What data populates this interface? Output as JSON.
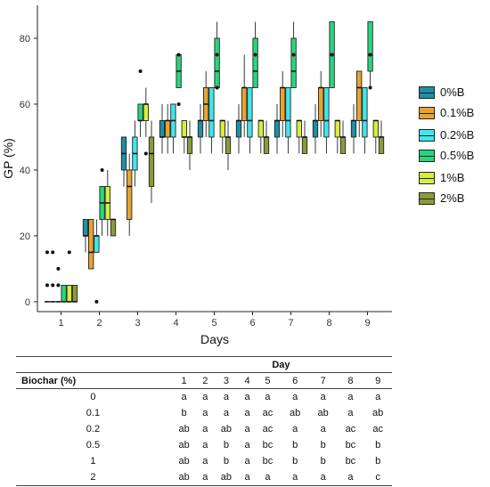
{
  "chart_data": {
    "type": "box",
    "xlabel": "Days",
    "ylabel": "GP (%)",
    "ylim": [
      -3,
      90
    ],
    "yticks": [
      0,
      20,
      40,
      60,
      80
    ],
    "categories": [
      "1",
      "2",
      "3",
      "4",
      "5",
      "6",
      "7",
      "8",
      "9"
    ],
    "grid": false,
    "legend_position": "right",
    "series": [
      {
        "name": "0%B",
        "color": "#1f8fa6",
        "boxes": [
          {
            "min": 0,
            "q1": 0,
            "median": 0,
            "q3": 0,
            "max": 0,
            "outliers": [
              5,
              15
            ]
          },
          {
            "min": 15,
            "q1": 20,
            "median": 20,
            "q3": 25,
            "max": 25,
            "outliers": []
          },
          {
            "min": 35,
            "q1": 40,
            "median": 45,
            "q3": 50,
            "max": 50,
            "outliers": []
          },
          {
            "min": 45,
            "q1": 50,
            "median": 50,
            "q3": 55,
            "max": 60,
            "outliers": []
          },
          {
            "min": 45,
            "q1": 50,
            "median": 55,
            "q3": 55,
            "max": 60,
            "outliers": []
          },
          {
            "min": 45,
            "q1": 50,
            "median": 55,
            "q3": 55,
            "max": 60,
            "outliers": []
          },
          {
            "min": 45,
            "q1": 50,
            "median": 55,
            "q3": 55,
            "max": 60,
            "outliers": []
          },
          {
            "min": 45,
            "q1": 50,
            "median": 55,
            "q3": 55,
            "max": 60,
            "outliers": []
          },
          {
            "min": 45,
            "q1": 50,
            "median": 55,
            "q3": 55,
            "max": 60,
            "outliers": []
          }
        ]
      },
      {
        "name": "0.1%B",
        "color": "#e6a532",
        "boxes": [
          {
            "min": 0,
            "q1": 0,
            "median": 0,
            "q3": 0,
            "max": 0,
            "outliers": [
              5,
              15
            ]
          },
          {
            "min": 10,
            "q1": 10,
            "median": 15,
            "q3": 25,
            "max": 25,
            "outliers": []
          },
          {
            "min": 20,
            "q1": 25,
            "median": 35,
            "q3": 40,
            "max": 45,
            "outliers": []
          },
          {
            "min": 45,
            "q1": 50,
            "median": 55,
            "q3": 55,
            "max": 60,
            "outliers": []
          },
          {
            "min": 50,
            "q1": 55,
            "median": 60,
            "q3": 65,
            "max": 70,
            "outliers": []
          },
          {
            "min": 50,
            "q1": 55,
            "median": 65,
            "q3": 65,
            "max": 75,
            "outliers": []
          },
          {
            "min": 50,
            "q1": 55,
            "median": 65,
            "q3": 65,
            "max": 70,
            "outliers": []
          },
          {
            "min": 50,
            "q1": 55,
            "median": 65,
            "q3": 65,
            "max": 70,
            "outliers": []
          },
          {
            "min": 50,
            "q1": 55,
            "median": 65,
            "q3": 70,
            "max": 70,
            "outliers": []
          }
        ]
      },
      {
        "name": "0.2%B",
        "color": "#3ee8ec",
        "boxes": [
          {
            "min": 0,
            "q1": 0,
            "median": 0,
            "q3": 0,
            "max": 0,
            "outliers": [
              5,
              10
            ]
          },
          {
            "min": 15,
            "q1": 15,
            "median": 20,
            "q3": 20,
            "max": 25,
            "outliers": [
              0
            ]
          },
          {
            "min": 35,
            "q1": 40,
            "median": 45,
            "q3": 50,
            "max": 55,
            "outliers": []
          },
          {
            "min": 45,
            "q1": 50,
            "median": 55,
            "q3": 60,
            "max": 60,
            "outliers": []
          },
          {
            "min": 45,
            "q1": 50,
            "median": 55,
            "q3": 65,
            "max": 65,
            "outliers": []
          },
          {
            "min": 45,
            "q1": 50,
            "median": 55,
            "q3": 65,
            "max": 65,
            "outliers": []
          },
          {
            "min": 45,
            "q1": 50,
            "median": 55,
            "q3": 65,
            "max": 65,
            "outliers": []
          },
          {
            "min": 45,
            "q1": 50,
            "median": 55,
            "q3": 65,
            "max": 65,
            "outliers": []
          },
          {
            "min": 45,
            "q1": 50,
            "median": 55,
            "q3": 65,
            "max": 65,
            "outliers": []
          }
        ]
      },
      {
        "name": "0.5%B",
        "color": "#28d67e",
        "boxes": [
          {
            "min": 0,
            "q1": 0,
            "median": 0,
            "q3": 5,
            "max": 5,
            "outliers": []
          },
          {
            "min": 20,
            "q1": 25,
            "median": 30,
            "q3": 35,
            "max": 35,
            "outliers": [
              40
            ]
          },
          {
            "min": 50,
            "q1": 55,
            "median": 55,
            "q3": 60,
            "max": 60,
            "outliers": [
              70
            ]
          },
          {
            "min": 65,
            "q1": 65,
            "median": 70,
            "q3": 75,
            "max": 75,
            "outliers": [
              60,
              75
            ]
          },
          {
            "min": 65,
            "q1": 65,
            "median": 70,
            "q3": 80,
            "max": 85,
            "outliers": [
              65,
              75
            ]
          },
          {
            "min": 65,
            "q1": 65,
            "median": 70,
            "q3": 80,
            "max": 85,
            "outliers": [
              75
            ]
          },
          {
            "min": 65,
            "q1": 65,
            "median": 70,
            "q3": 80,
            "max": 85,
            "outliers": [
              75
            ]
          },
          {
            "min": 65,
            "q1": 65,
            "median": 75,
            "q3": 85,
            "max": 85,
            "outliers": [
              75
            ]
          },
          {
            "min": 65,
            "q1": 70,
            "median": 75,
            "q3": 85,
            "max": 85,
            "outliers": [
              65,
              75
            ]
          }
        ]
      },
      {
        "name": "1%B",
        "color": "#d4f03a",
        "boxes": [
          {
            "min": 0,
            "q1": 0,
            "median": 0,
            "q3": 5,
            "max": 5,
            "outliers": [
              15
            ]
          },
          {
            "min": 20,
            "q1": 25,
            "median": 30,
            "q3": 35,
            "max": 40,
            "outliers": []
          },
          {
            "min": 50,
            "q1": 55,
            "median": 60,
            "q3": 60,
            "max": 65,
            "outliers": [
              45
            ]
          },
          {
            "min": 45,
            "q1": 50,
            "median": 50,
            "q3": 55,
            "max": 55,
            "outliers": []
          },
          {
            "min": 45,
            "q1": 50,
            "median": 55,
            "q3": 55,
            "max": 55,
            "outliers": []
          },
          {
            "min": 45,
            "q1": 50,
            "median": 55,
            "q3": 55,
            "max": 55,
            "outliers": []
          },
          {
            "min": 45,
            "q1": 50,
            "median": 55,
            "q3": 55,
            "max": 55,
            "outliers": []
          },
          {
            "min": 45,
            "q1": 50,
            "median": 55,
            "q3": 55,
            "max": 55,
            "outliers": []
          },
          {
            "min": 45,
            "q1": 50,
            "median": 55,
            "q3": 55,
            "max": 55,
            "outliers": []
          }
        ]
      },
      {
        "name": "2%B",
        "color": "#8d9a3a",
        "boxes": [
          {
            "min": 0,
            "q1": 0,
            "median": 0,
            "q3": 5,
            "max": 5,
            "outliers": []
          },
          {
            "min": 20,
            "q1": 20,
            "median": 25,
            "q3": 25,
            "max": 25,
            "outliers": []
          },
          {
            "min": 30,
            "q1": 35,
            "median": 45,
            "q3": 50,
            "max": 55,
            "outliers": []
          },
          {
            "min": 40,
            "q1": 45,
            "median": 50,
            "q3": 50,
            "max": 55,
            "outliers": []
          },
          {
            "min": 40,
            "q1": 45,
            "median": 50,
            "q3": 50,
            "max": 55,
            "outliers": []
          },
          {
            "min": 45,
            "q1": 45,
            "median": 50,
            "q3": 50,
            "max": 55,
            "outliers": []
          },
          {
            "min": 45,
            "q1": 45,
            "median": 50,
            "q3": 50,
            "max": 55,
            "outliers": []
          },
          {
            "min": 45,
            "q1": 45,
            "median": 50,
            "q3": 50,
            "max": 55,
            "outliers": []
          },
          {
            "min": 45,
            "q1": 45,
            "median": 50,
            "q3": 50,
            "max": 55,
            "outliers": []
          }
        ]
      }
    ]
  },
  "legend": [
    "0%B",
    "0.1%B",
    "0.2%B",
    "0.5%B",
    "1%B",
    "2%B"
  ],
  "table": {
    "title": "Day",
    "row_header": "Biochar (%)",
    "columns": [
      "1",
      "2",
      "3",
      "4",
      "5",
      "6",
      "7",
      "8",
      "9"
    ],
    "rows": [
      {
        "biochar": "0",
        "cells": [
          "a",
          "a",
          "a",
          "a",
          "a",
          "a",
          "a",
          "a",
          "a"
        ]
      },
      {
        "biochar": "0.1",
        "cells": [
          "b",
          "a",
          "a",
          "a",
          "ac",
          "ab",
          "ab",
          "a",
          "ab"
        ]
      },
      {
        "biochar": "0.2",
        "cells": [
          "ab",
          "a",
          "ab",
          "a",
          "ac",
          "a",
          "a",
          "ac",
          "ac"
        ]
      },
      {
        "biochar": "0.5",
        "cells": [
          "ab",
          "a",
          "b",
          "a",
          "bc",
          "b",
          "b",
          "bc",
          "b"
        ]
      },
      {
        "biochar": "1",
        "cells": [
          "ab",
          "a",
          "b",
          "a",
          "bc",
          "b",
          "b",
          "bc",
          "b"
        ]
      },
      {
        "biochar": "2",
        "cells": [
          "ab",
          "a",
          "ab",
          "a",
          "a",
          "a",
          "a",
          "a",
          "c"
        ]
      }
    ]
  }
}
